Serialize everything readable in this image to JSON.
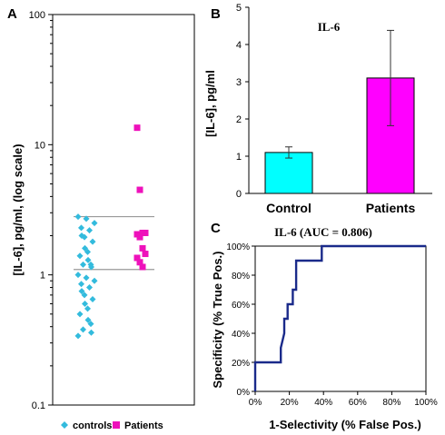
{
  "panels": {
    "a": "A",
    "b": "B",
    "c": "C"
  },
  "chart_data": [
    {
      "type": "scatter",
      "panel": "A",
      "ylabel": "[IL-6], pg/ml, (log scale)",
      "yscale": "log",
      "ylim": [
        0.1,
        100
      ],
      "yticks": [
        "0.1",
        "1",
        "10",
        "100"
      ],
      "series": [
        {
          "name": "controls",
          "color": "#33bbdd",
          "marker": "diamond",
          "values": [
            2.8,
            2.7,
            2.5,
            2.3,
            2.2,
            2.0,
            1.95,
            1.8,
            1.6,
            1.5,
            1.4,
            1.3,
            1.2,
            1.2,
            1.15,
            1.0,
            0.95,
            0.9,
            0.85,
            0.8,
            0.75,
            0.7,
            0.65,
            0.6,
            0.55,
            0.5,
            0.45,
            0.42,
            0.38,
            0.36,
            0.34
          ]
        },
        {
          "name": "Patients",
          "color": "#ee11bb",
          "marker": "square",
          "values": [
            13.5,
            4.5,
            2.1,
            2.1,
            2.05,
            1.95,
            1.6,
            1.45,
            1.35,
            1.25,
            1.15
          ]
        }
      ],
      "reference_lines": [
        2.8,
        1.1
      ],
      "legend": "bottom"
    },
    {
      "type": "bar",
      "panel": "B",
      "title": "IL-6",
      "ylabel": "[IL-6], pg/ml",
      "categories": [
        "Control",
        "Patients"
      ],
      "values": [
        1.1,
        3.1
      ],
      "errors": [
        0.15,
        1.28
      ],
      "colors": [
        "#00ffff",
        "#ff00ff"
      ],
      "ylim": [
        0,
        5
      ],
      "yticks": [
        "0",
        "1",
        "2",
        "3",
        "4",
        "5"
      ]
    },
    {
      "type": "line",
      "panel": "C",
      "title": "IL-6  (AUC = 0.806)",
      "xlabel": "1-Selectivity (% False Pos.)",
      "ylabel": "Specificity (% True Pos.)",
      "x": [
        0,
        0,
        15,
        15,
        17,
        17,
        19,
        19,
        22,
        22,
        24,
        24,
        29,
        29,
        39,
        39,
        100
      ],
      "y": [
        0,
        20,
        20,
        30,
        40,
        50,
        50,
        60,
        60,
        70,
        70,
        90,
        90,
        90,
        90,
        100,
        100
      ],
      "xlim": [
        0,
        100
      ],
      "ylim": [
        0,
        100
      ],
      "xticks": [
        "0%",
        "20%",
        "40%",
        "60%",
        "80%",
        "100%"
      ],
      "yticks": [
        "0%",
        "20%",
        "40%",
        "60%",
        "80%",
        "100%"
      ],
      "line_color": "#1a2a8a"
    }
  ]
}
